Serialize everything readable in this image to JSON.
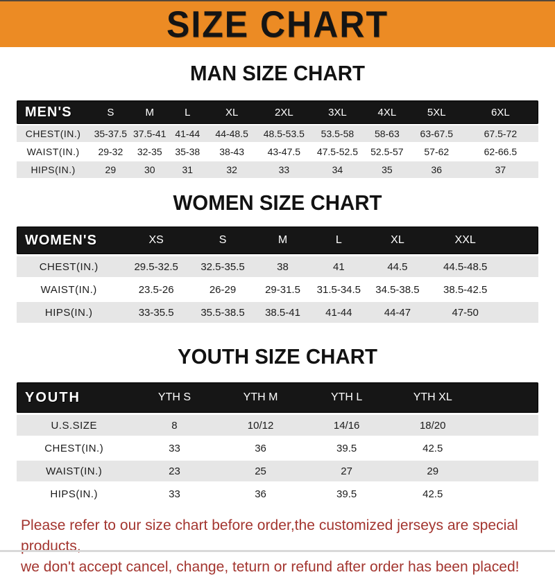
{
  "page": {
    "banner_title": "SIZE CHART",
    "footer_line1": "Please refer to our size chart before order,the customized jerseys are special products,",
    "footer_line2": "we don't accept cancel, change, teturn or refund after order has been placed!"
  },
  "colors": {
    "banner_orange": "#EC8B24",
    "table_header_black": "#161616",
    "row_gray": "#E6E6E6",
    "footer_red": "#A3352F"
  },
  "tables": [
    {
      "id": "men",
      "section_title": "MAN SIZE CHART",
      "header_label": "MEN'S",
      "columns": [
        "S",
        "M",
        "L",
        "XL",
        "2XL",
        "3XL",
        "4XL",
        "5XL",
        "6XL"
      ],
      "rows": [
        {
          "label": "CHEST(IN.)",
          "values": [
            "35-37.5",
            "37.5-41",
            "41-44",
            "44-48.5",
            "48.5-53.5",
            "53.5-58",
            "58-63",
            "63-67.5",
            "67.5-72"
          ]
        },
        {
          "label": "WAIST(IN.)",
          "values": [
            "29-32",
            "32-35",
            "35-38",
            "38-43",
            "43-47.5",
            "47.5-52.5",
            "52.5-57",
            "57-62",
            "62-66.5"
          ]
        },
        {
          "label": "HIPS(IN.)",
          "values": [
            "29",
            "30",
            "31",
            "32",
            "33",
            "34",
            "35",
            "36",
            "37"
          ]
        }
      ]
    },
    {
      "id": "women",
      "section_title": "WOMEN SIZE CHART",
      "header_label": "WOMEN'S",
      "columns": [
        "XS",
        "S",
        "M",
        "L",
        "XL",
        "XXL"
      ],
      "rows": [
        {
          "label": "CHEST(IN.)",
          "values": [
            "29.5-32.5",
            "32.5-35.5",
            "38",
            "41",
            "44.5",
            "44.5-48.5"
          ]
        },
        {
          "label": "WAIST(IN.)",
          "values": [
            "23.5-26",
            "26-29",
            "29-31.5",
            "31.5-34.5",
            "34.5-38.5",
            "38.5-42.5"
          ]
        },
        {
          "label": "HIPS(IN.)",
          "values": [
            "33-35.5",
            "35.5-38.5",
            "38.5-41",
            "41-44",
            "44-47",
            "47-50"
          ]
        }
      ]
    },
    {
      "id": "youth",
      "section_title": "YOUTH SIZE CHART",
      "header_label": "YOUTH",
      "columns": [
        "YTH S",
        "YTH M",
        "YTH L",
        "YTH XL"
      ],
      "rows": [
        {
          "label": "U.S.SIZE",
          "values": [
            "8",
            "10/12",
            "14/16",
            "18/20"
          ]
        },
        {
          "label": "CHEST(IN.)",
          "values": [
            "33",
            "36",
            "39.5",
            "42.5"
          ]
        },
        {
          "label": "WAIST(IN.)",
          "values": [
            "23",
            "25",
            "27",
            "29"
          ]
        },
        {
          "label": "HIPS(IN.)",
          "values": [
            "33",
            "36",
            "39.5",
            "42.5"
          ]
        }
      ]
    }
  ]
}
